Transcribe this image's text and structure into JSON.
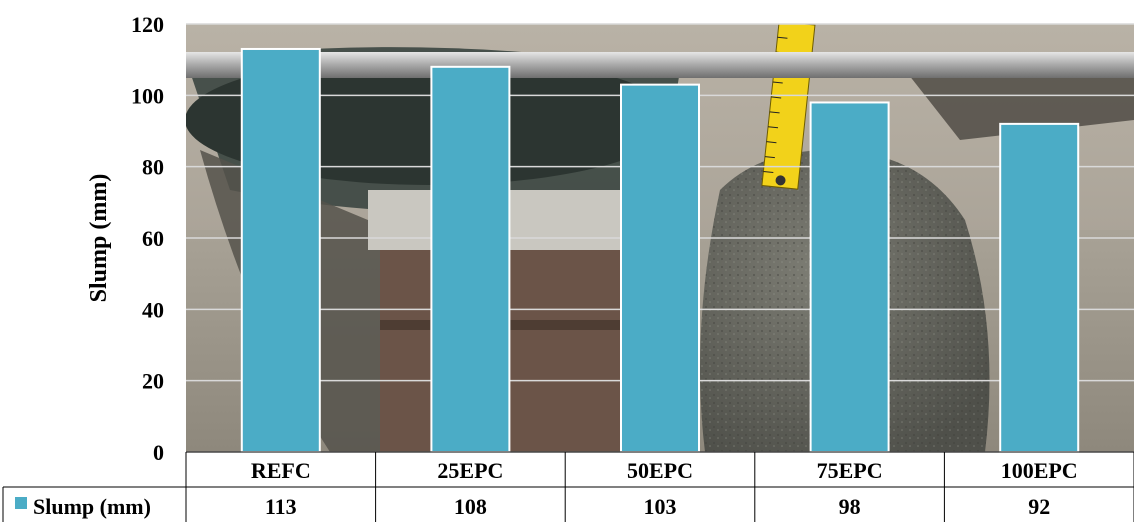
{
  "chart_data": {
    "type": "bar",
    "categories": [
      "REFC",
      "25EPC",
      "50EPC",
      "75EPC",
      "100EPC"
    ],
    "series": [
      {
        "name": "Slump (mm)",
        "values": [
          113,
          108,
          103,
          98,
          92
        ],
        "color": "#4BACC6"
      }
    ],
    "ylabel": "Slump (mm)",
    "xlabel": "",
    "ylim": [
      0,
      120
    ],
    "yticks": [
      0,
      20,
      40,
      60,
      80,
      100,
      120
    ],
    "grid": true,
    "legend": "data-table-left",
    "data_table": true,
    "background": "photo of concrete slump test with measuring tape"
  }
}
